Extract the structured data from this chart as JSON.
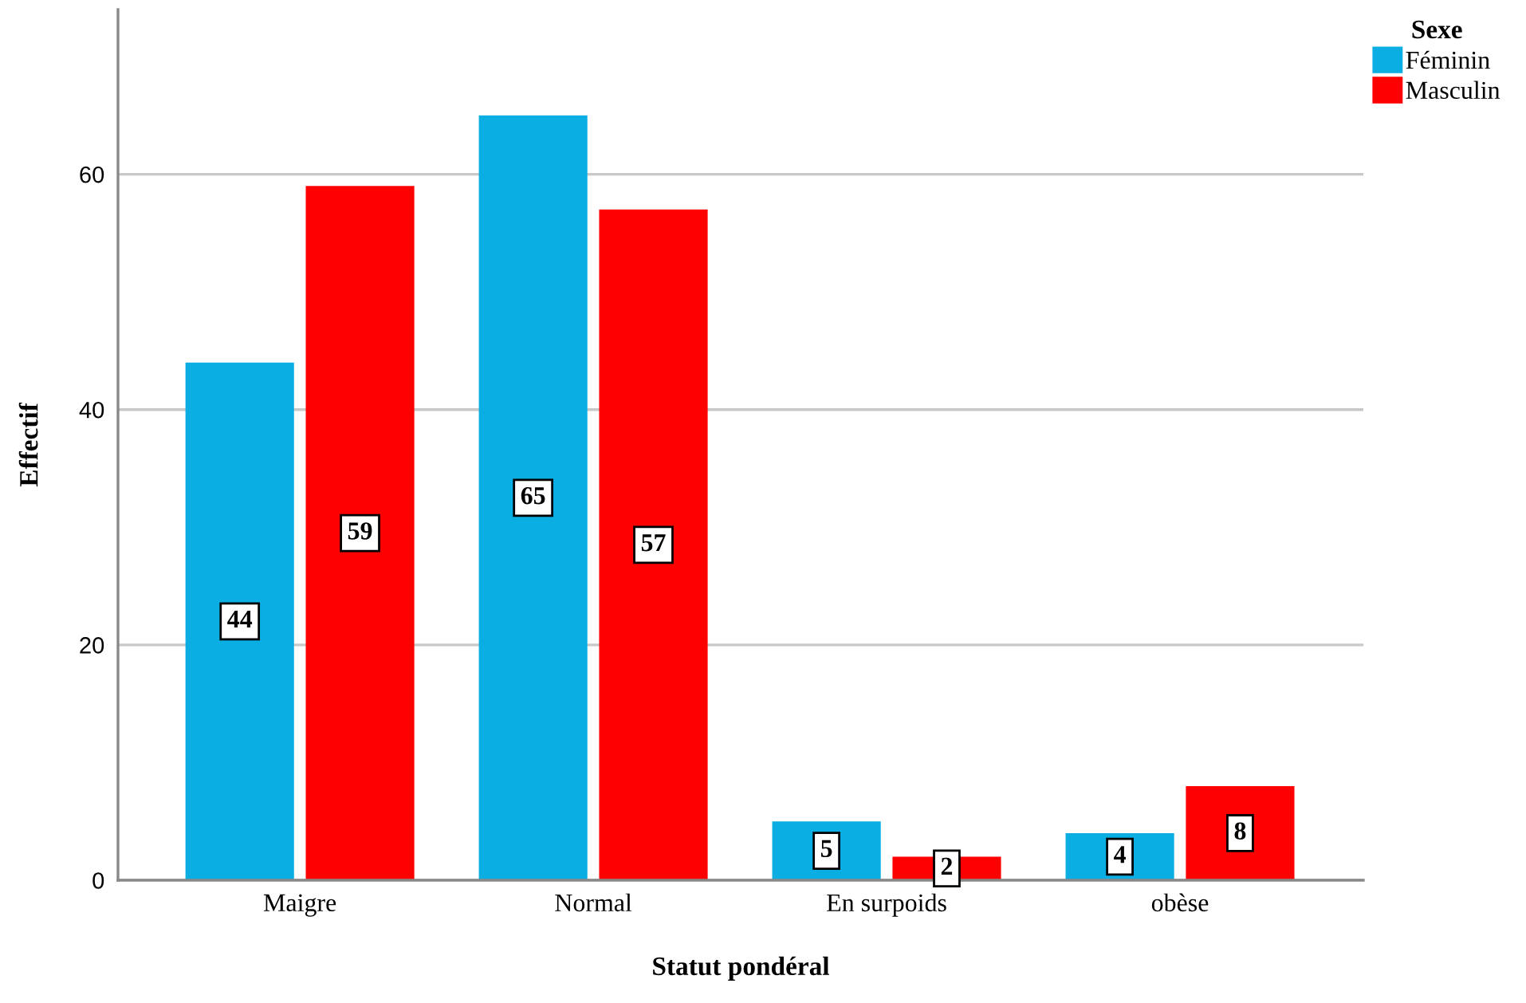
{
  "chart_data": {
    "type": "bar",
    "xlabel": "Statut pondéral",
    "ylabel": "Effectif",
    "legend_title": "Sexe",
    "categories": [
      "Maigre",
      "Normal",
      "En surpoids",
      "obèse"
    ],
    "series": [
      {
        "name": "Féminin",
        "color": "#0baee3",
        "values": [
          44,
          65,
          5,
          4
        ]
      },
      {
        "name": "Masculin",
        "color": "#ff0000",
        "values": [
          59,
          57,
          2,
          8
        ]
      }
    ],
    "ylim": [
      0,
      74
    ],
    "yticks": [
      0,
      20,
      40,
      60
    ],
    "grid": "y",
    "legend": "top right",
    "data_labels": true
  }
}
